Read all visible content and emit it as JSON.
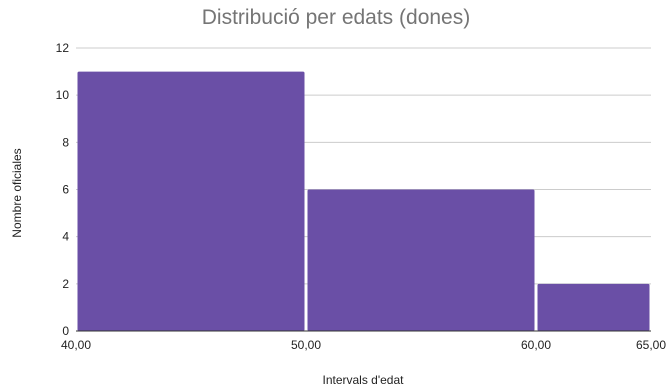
{
  "chart_data": {
    "type": "bar",
    "title": "Distribució per edats (dones)",
    "xlabel": "Intervals d'edat",
    "ylabel": "Nombre oficiales",
    "bins": [
      {
        "from": 40,
        "to": 50,
        "value": 11
      },
      {
        "from": 50,
        "to": 60,
        "value": 6
      },
      {
        "from": 60,
        "to": 65,
        "value": 2
      }
    ],
    "x_ticks": [
      "40,00",
      "50,00",
      "60,00",
      "65,00"
    ],
    "y_ticks": [
      "0",
      "2",
      "4",
      "6",
      "8",
      "10",
      "12"
    ],
    "ylim": [
      0,
      12
    ],
    "grid": true,
    "legend": "none",
    "bar_color": "#6a4fa6"
  }
}
